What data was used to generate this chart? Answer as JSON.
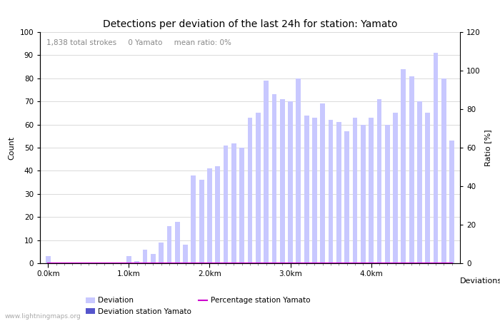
{
  "title": "Detections per deviation of the last 24h for station: Yamato",
  "xlabel": "Deviations",
  "ylabel_left": "Count",
  "ylabel_right": "Ratio [%]",
  "annotation": "1,838 total strokes     0 Yamato     mean ratio: 0%",
  "ylim_left": [
    0,
    100
  ],
  "ylim_right": [
    0,
    120
  ],
  "yticks_left": [
    0,
    10,
    20,
    30,
    40,
    50,
    60,
    70,
    80,
    90,
    100
  ],
  "yticks_right": [
    0,
    20,
    40,
    60,
    80,
    100,
    120
  ],
  "xtick_labels": [
    "0.0km",
    "1.0km",
    "2.0km",
    "3.0km",
    "4.0km"
  ],
  "xtick_positions": [
    0,
    10,
    20,
    30,
    40
  ],
  "bar_color_light": "#c8c8ff",
  "bar_color_dark": "#5555cc",
  "line_color": "#cc00cc",
  "grid_color": "#cccccc",
  "background_color": "#ffffff",
  "watermark": "www.lightningmaps.org",
  "deviation_values": [
    3,
    0,
    0,
    0,
    0,
    0,
    0,
    0,
    0,
    0,
    3,
    1,
    6,
    4,
    9,
    16,
    18,
    8,
    38,
    36,
    41,
    42,
    51,
    52,
    50,
    63,
    65,
    79,
    73,
    71,
    70,
    80,
    64,
    63,
    69,
    62,
    61,
    57,
    63,
    60,
    63,
    71,
    60,
    65,
    84,
    81,
    70,
    65,
    91,
    80,
    53
  ],
  "station_values": [
    0,
    0,
    0,
    0,
    0,
    0,
    0,
    0,
    0,
    0,
    0,
    0,
    0,
    0,
    0,
    0,
    0,
    0,
    0,
    0,
    0,
    0,
    0,
    0,
    0,
    0,
    0,
    0,
    0,
    0,
    0,
    0,
    0,
    0,
    0,
    0,
    0,
    0,
    0,
    0,
    0,
    0,
    0,
    0,
    0,
    0,
    0,
    0,
    0,
    0,
    0
  ],
  "percentage_values": [
    0,
    0,
    0,
    0,
    0,
    0,
    0,
    0,
    0,
    0,
    0,
    0,
    0,
    0,
    0,
    0,
    0,
    0,
    0,
    0,
    0,
    0,
    0,
    0,
    0,
    0,
    0,
    0,
    0,
    0,
    0,
    0,
    0,
    0,
    0,
    0,
    0,
    0,
    0,
    0,
    0,
    0,
    0,
    0,
    0,
    0,
    0,
    0,
    0,
    0,
    0
  ],
  "title_fontsize": 10,
  "label_fontsize": 8,
  "tick_fontsize": 7.5,
  "annotation_fontsize": 7.5,
  "legend_fontsize": 7.5,
  "watermark_fontsize": 6.5
}
